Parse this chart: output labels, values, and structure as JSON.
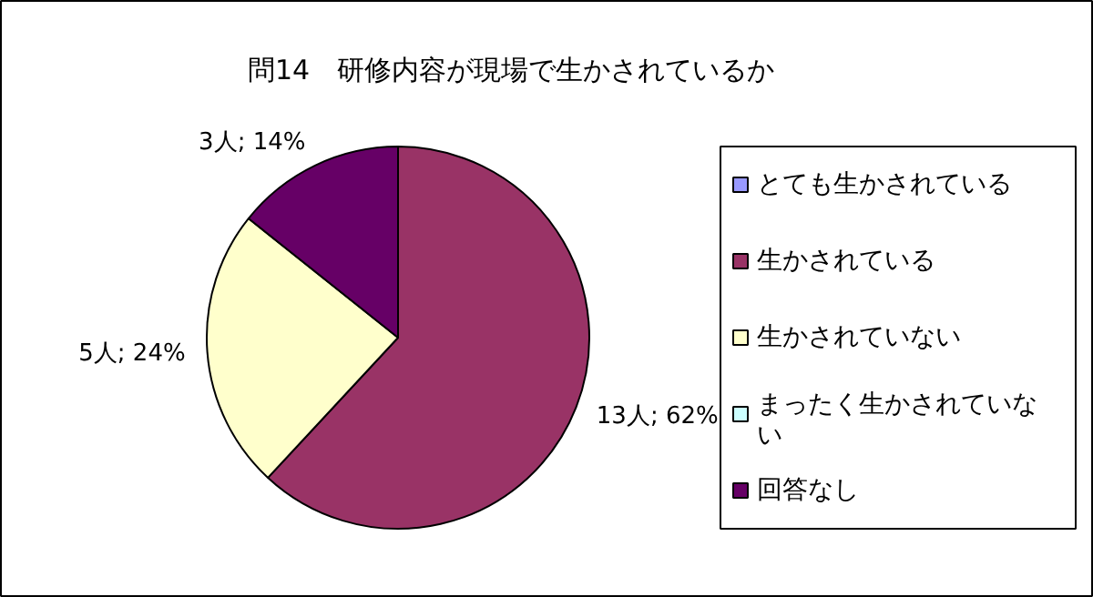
{
  "chart_data": {
    "type": "pie",
    "title": "問14　研修内容が現場で生かされているか",
    "categories": [
      "とても生かされている",
      "生かされている",
      "生かされていない",
      "まったく生かされていない",
      "回答なし"
    ],
    "values": [
      0,
      13,
      5,
      0,
      3
    ],
    "colors": [
      "#9999ff",
      "#993366",
      "#ffffcc",
      "#ccffff",
      "#660066"
    ],
    "value_labels": [
      null,
      "13人; 62%",
      "5人; 24%",
      null,
      "3人; 14%"
    ],
    "legend": "right"
  }
}
